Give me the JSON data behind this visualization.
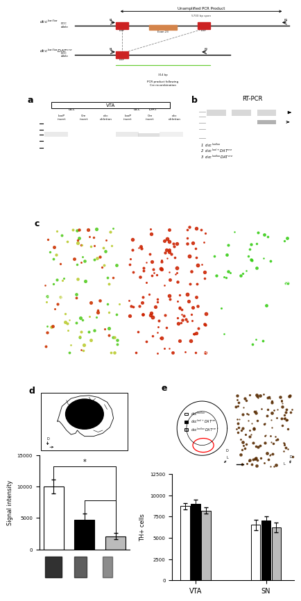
{
  "fig_width": 4.74,
  "fig_height": 8.48,
  "bg_color": "#ffffff",
  "panel_d_bars": {
    "values": [
      10000,
      4750,
      2100
    ],
    "errors": [
      1100,
      900,
      500
    ],
    "colors": [
      "#ffffff",
      "#000000",
      "#bbbbbb"
    ],
    "ylabel": "Signal intensity",
    "yticks": [
      0,
      5000,
      10000,
      15000
    ],
    "ylim": [
      0,
      15000
    ]
  },
  "panel_e_bars": {
    "groups_vta": [
      8700,
      9000,
      8200
    ],
    "groups_sn": [
      6500,
      7000,
      6200
    ],
    "errors_vta": [
      400,
      500,
      350
    ],
    "errors_sn": [
      600,
      500,
      550
    ],
    "colors": [
      "#ffffff",
      "#000000",
      "#bbbbbb"
    ],
    "ylabel": "TH+ cells",
    "yticks": [
      0,
      2500,
      5000,
      7500,
      10000,
      12500
    ],
    "ylim": [
      0,
      12500
    ],
    "xlabel_vta": "VTA",
    "xlabel_sn": "SN"
  },
  "bar_edge_color": "#000000",
  "bar_linewidth": 0.8,
  "error_color": "#000000",
  "error_capsize": 2,
  "error_linewidth": 0.8,
  "label_fontsize": 6,
  "tick_fontsize": 5,
  "panel_label_fontsize": 9,
  "gel_a_bg": "#6a6a6a",
  "gel_b_bg": "#202020"
}
